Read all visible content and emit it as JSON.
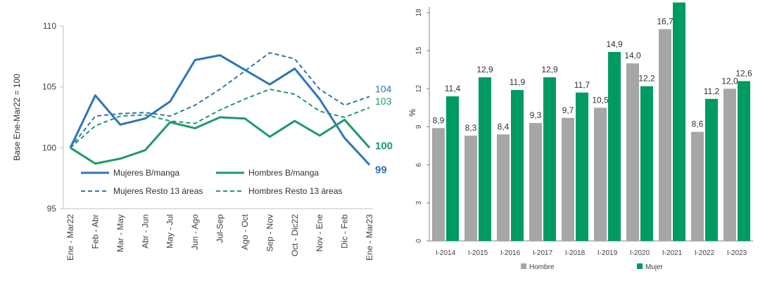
{
  "chart_data": [
    {
      "type": "line",
      "ylabel": "Base Ene-Mar22 = 100",
      "ylim": [
        95,
        110
      ],
      "yticks": [
        95,
        100,
        105,
        110
      ],
      "categories": [
        "Ene - Mar22",
        "Feb - Abr",
        "Mar - May",
        "Abr - Jun",
        "May - Jul",
        "Jun - Ago",
        "Jul-Sep",
        "Ago - Oct",
        "Sep - Nov",
        "Oct - Dic22",
        "Nov - Ene",
        "Dic - Feb",
        "Ene - Mar23"
      ],
      "series": [
        {
          "name": "Mujeres B/manga",
          "color": "#2e75b6",
          "style": "solid",
          "values": [
            100,
            104.3,
            101.9,
            102.4,
            103.8,
            107.2,
            107.6,
            106.4,
            105.2,
            106.5,
            104.0,
            100.8,
            98.6
          ],
          "end_label": "99"
        },
        {
          "name": "Hombres B/manga",
          "color": "#1e9a6a",
          "style": "solid",
          "values": [
            100,
            98.7,
            99.1,
            99.8,
            102.1,
            101.6,
            102.5,
            102.4,
            100.9,
            102.2,
            101.0,
            102.3,
            100.0
          ],
          "end_label": "100"
        },
        {
          "name": "Mujeres Resto 13 áreas",
          "color": "#2e75b6",
          "style": "dashed",
          "values": [
            100,
            102.6,
            102.8,
            102.9,
            102.6,
            103.5,
            104.8,
            106.3,
            107.8,
            107.3,
            104.8,
            103.5,
            104.2
          ],
          "end_label": "104"
        },
        {
          "name": "Hombres Resto 13 áreas",
          "color": "#1e9a6a",
          "style": "dashed",
          "values": [
            100,
            101.8,
            102.6,
            102.7,
            102.2,
            102.0,
            103.1,
            104.0,
            104.8,
            104.4,
            103.0,
            102.5,
            103.3
          ],
          "end_label": "103"
        }
      ]
    },
    {
      "type": "bar",
      "ylabel": "%",
      "ylim": [
        0,
        18
      ],
      "yticks": [
        0,
        3,
        6,
        9,
        12,
        15,
        18
      ],
      "categories": [
        "I-2014",
        "I-2015",
        "I-2016",
        "I-2017",
        "I-2018",
        "I-2019",
        "I-2020",
        "I-2021",
        "I-2022",
        "I-2023"
      ],
      "series": [
        {
          "name": "Hombre",
          "color": "#a6a6a6",
          "values": [
            8.9,
            8.3,
            8.4,
            9.3,
            9.7,
            10.5,
            14.0,
            16.7,
            8.6,
            12.0
          ],
          "labels": [
            "8,9",
            "8,3",
            "8,4",
            "9,3",
            "9,7",
            "10,5",
            "14,0",
            "16,7",
            "8,6",
            "12,0"
          ]
        },
        {
          "name": "Mujer",
          "color": "#009a63",
          "values": [
            11.4,
            12.9,
            11.9,
            12.9,
            11.7,
            14.9,
            12.2,
            18.8,
            11.2,
            12.6
          ],
          "labels": [
            "11,4",
            "12,9",
            "11,9",
            "12,9",
            "11,7",
            "14,9",
            "12,2",
            "",
            "11,2",
            "12,6"
          ]
        }
      ]
    }
  ]
}
